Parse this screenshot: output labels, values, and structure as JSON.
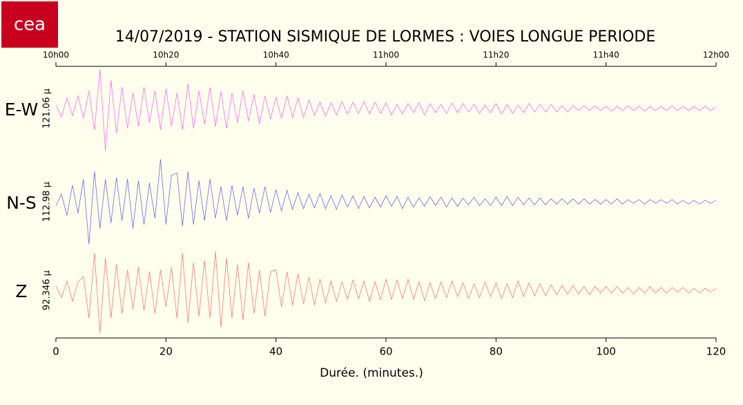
{
  "logo": "cea",
  "chart_data": {
    "type": "line",
    "title": "14/07/2019  -  STATION SISMIQUE DE LORMES : VOIES LONGUE PERIODE",
    "xlabel": "Durée.  (minutes.)",
    "xlim": [
      0,
      120
    ],
    "xticks": [
      0,
      20,
      40,
      60,
      80,
      100,
      120
    ],
    "x2ticks": [
      {
        "value": 0,
        "label": "10h00"
      },
      {
        "value": 20,
        "label": "10h20"
      },
      {
        "value": 40,
        "label": "10h40"
      },
      {
        "value": 60,
        "label": "11h00"
      },
      {
        "value": 80,
        "label": "11h20"
      },
      {
        "value": 100,
        "label": "11h40"
      },
      {
        "value": 120,
        "label": "12h00"
      }
    ],
    "x": [
      0,
      1,
      2,
      3,
      4,
      5,
      6,
      7,
      8,
      9,
      10,
      11,
      12,
      13,
      14,
      15,
      16,
      17,
      18,
      19,
      20,
      21,
      22,
      23,
      24,
      25,
      26,
      27,
      28,
      29,
      30,
      31,
      32,
      33,
      34,
      35,
      36,
      37,
      38,
      39,
      40,
      41,
      42,
      43,
      44,
      45,
      46,
      47,
      48,
      49,
      50,
      51,
      52,
      53,
      54,
      55,
      56,
      57,
      58,
      59,
      60,
      61,
      62,
      63,
      64,
      65,
      66,
      67,
      68,
      69,
      70,
      71,
      72,
      73,
      74,
      75,
      76,
      77,
      78,
      79,
      80,
      81,
      82,
      83,
      84,
      85,
      86,
      87,
      88,
      89,
      90,
      91,
      92,
      93,
      94,
      95,
      96,
      97,
      98,
      99,
      100,
      101,
      102,
      103,
      104,
      105,
      106,
      107,
      108,
      109,
      110,
      111,
      112,
      113,
      114,
      115,
      116,
      117,
      118,
      119,
      120
    ],
    "series": [
      {
        "name": "E-W",
        "scale_label": "121.06 µ",
        "color": "#ff66ff",
        "ylim": [
          -60.53,
          60.53
        ],
        "values": [
          5,
          -12,
          15,
          -10,
          18,
          -14,
          25,
          -30,
          55,
          -60,
          40,
          -35,
          30,
          -28,
          22,
          -25,
          30,
          -20,
          25,
          -30,
          28,
          -25,
          22,
          -30,
          35,
          -28,
          25,
          -22,
          30,
          -26,
          24,
          -28,
          22,
          -20,
          25,
          -18,
          20,
          -22,
          18,
          -15,
          16,
          -14,
          18,
          -12,
          15,
          -13,
          12,
          -10,
          9,
          -11,
          8,
          -9,
          10,
          -8,
          9,
          -7,
          10,
          -8,
          9,
          -7,
          8,
          -9,
          6,
          -8,
          7,
          -6,
          8,
          -9,
          7,
          -6,
          6,
          -7,
          8,
          -6,
          7,
          -5,
          6,
          -7,
          5,
          -6,
          7,
          -8,
          6,
          -7,
          5,
          -6,
          7,
          -5,
          6,
          -5,
          6,
          -5,
          4,
          -5,
          4,
          -3,
          4,
          -3,
          4,
          -3,
          3,
          -4,
          3,
          -3,
          4,
          -3,
          3,
          -4,
          3,
          -3,
          3,
          -3,
          4,
          -3,
          3,
          -3,
          3,
          -3,
          3,
          -3,
          2
        ]
      },
      {
        "name": "N-S",
        "scale_label": "112.98 µ",
        "color": "#6666ff",
        "ylim": [
          -56.49,
          56.49
        ],
        "values": [
          -5,
          10,
          -18,
          22,
          -15,
          30,
          -56,
          40,
          -35,
          30,
          -28,
          32,
          -25,
          30,
          -35,
          28,
          -30,
          25,
          -22,
          56,
          -30,
          35,
          38,
          -32,
          40,
          -30,
          28,
          -25,
          30,
          -22,
          20,
          -25,
          22,
          -18,
          20,
          -22,
          18,
          -15,
          20,
          -14,
          16,
          -12,
          15,
          -10,
          12,
          -9,
          10,
          -8,
          11,
          -9,
          8,
          -10,
          9,
          -7,
          8,
          -9,
          7,
          -8,
          6,
          -7,
          8,
          -6,
          7,
          -9,
          6,
          -7,
          5,
          -6,
          7,
          -5,
          6,
          -7,
          5,
          -6,
          5,
          -4,
          6,
          -5,
          4,
          -5,
          6,
          -5,
          7,
          -5,
          6,
          -4,
          5,
          -4,
          5,
          -4,
          4,
          -3,
          4,
          -3,
          4,
          -3,
          4,
          -3,
          3,
          -3,
          3,
          -3,
          4,
          -3,
          3,
          -2,
          3,
          -3,
          3,
          -2,
          3,
          -2,
          3,
          -3,
          2,
          -3,
          2,
          -3,
          2,
          -2,
          2
        ]
      },
      {
        "name": "Z",
        "scale_label": "92.346 µ",
        "color": "#ff7766",
        "ylim": [
          -46.17,
          46.17
        ],
        "values": [
          5,
          -8,
          10,
          -12,
          9,
          15,
          -30,
          40,
          -46,
          35,
          -30,
          28,
          -25,
          22,
          -20,
          25,
          -22,
          20,
          -25,
          22,
          -18,
          25,
          -30,
          40,
          -35,
          30,
          -28,
          32,
          -30,
          42,
          -40,
          35,
          -30,
          28,
          -32,
          30,
          -25,
          22,
          -28,
          20,
          22,
          -18,
          20,
          -16,
          18,
          -15,
          14,
          -16,
          12,
          -14,
          10,
          -12,
          9,
          -10,
          11,
          -9,
          10,
          -12,
          9,
          -10,
          12,
          -10,
          11,
          -9,
          12,
          -10,
          9,
          -11,
          8,
          -9,
          9,
          -8,
          10,
          -7,
          8,
          -9,
          7,
          -8,
          9,
          -7,
          8,
          -9,
          7,
          -8,
          10,
          -7,
          8,
          -6,
          7,
          -6,
          6,
          -5,
          5,
          -4,
          5,
          -4,
          4,
          -5,
          4,
          -3,
          4,
          -3,
          4,
          -3,
          3,
          -4,
          3,
          -3,
          4,
          -3,
          3,
          -3,
          3,
          -2,
          3,
          -3,
          2,
          -3,
          2,
          -2,
          2
        ]
      }
    ]
  }
}
